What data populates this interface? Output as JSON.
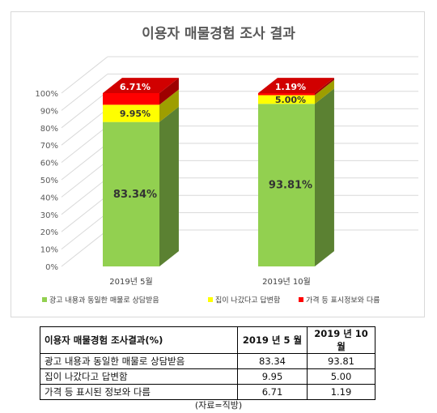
{
  "chart_data": {
    "type": "bar",
    "stacked": true,
    "style": "3d-column",
    "title": "이용자 매물경험 조사 결과",
    "categories": [
      "2019년 5월",
      "2019년 10월"
    ],
    "series": [
      {
        "name": "광고 내용과 동일한 매물로 상담받음",
        "color": "#92D050",
        "values": [
          83.34,
          93.81
        ],
        "labels": [
          "83.34%",
          "93.81%"
        ]
      },
      {
        "name": "집이 나갔다고 답변함",
        "color": "#FFFF00",
        "values": [
          9.95,
          5.0
        ],
        "labels": [
          "9.95%",
          "5.00%"
        ]
      },
      {
        "name": "가격 등 표시정보와 다름",
        "color": "#FF0000",
        "values": [
          6.71,
          1.19
        ],
        "labels": [
          "6.71%",
          "1.19%"
        ]
      }
    ],
    "ylim": [
      0,
      100
    ],
    "yticks": [
      "0%",
      "10%",
      "20%",
      "30%",
      "40%",
      "50%",
      "60%",
      "70%",
      "80%",
      "90%",
      "100%"
    ],
    "legend_position": "bottom",
    "grid": true
  },
  "table": {
    "headers": [
      "이용자 매물경험 조사결과(%)",
      "2019 년 5 월",
      "2019 년 10 월"
    ],
    "rows": [
      [
        "광고 내용과 동일한 매물로 상담받음",
        "83.34",
        "93.81"
      ],
      [
        "집이 나갔다고 답변함",
        "9.95",
        "5.00"
      ],
      [
        "가격 등 표시된 정보와 다름",
        "6.71",
        "1.19"
      ]
    ]
  },
  "source_note": "(자료=직방)"
}
